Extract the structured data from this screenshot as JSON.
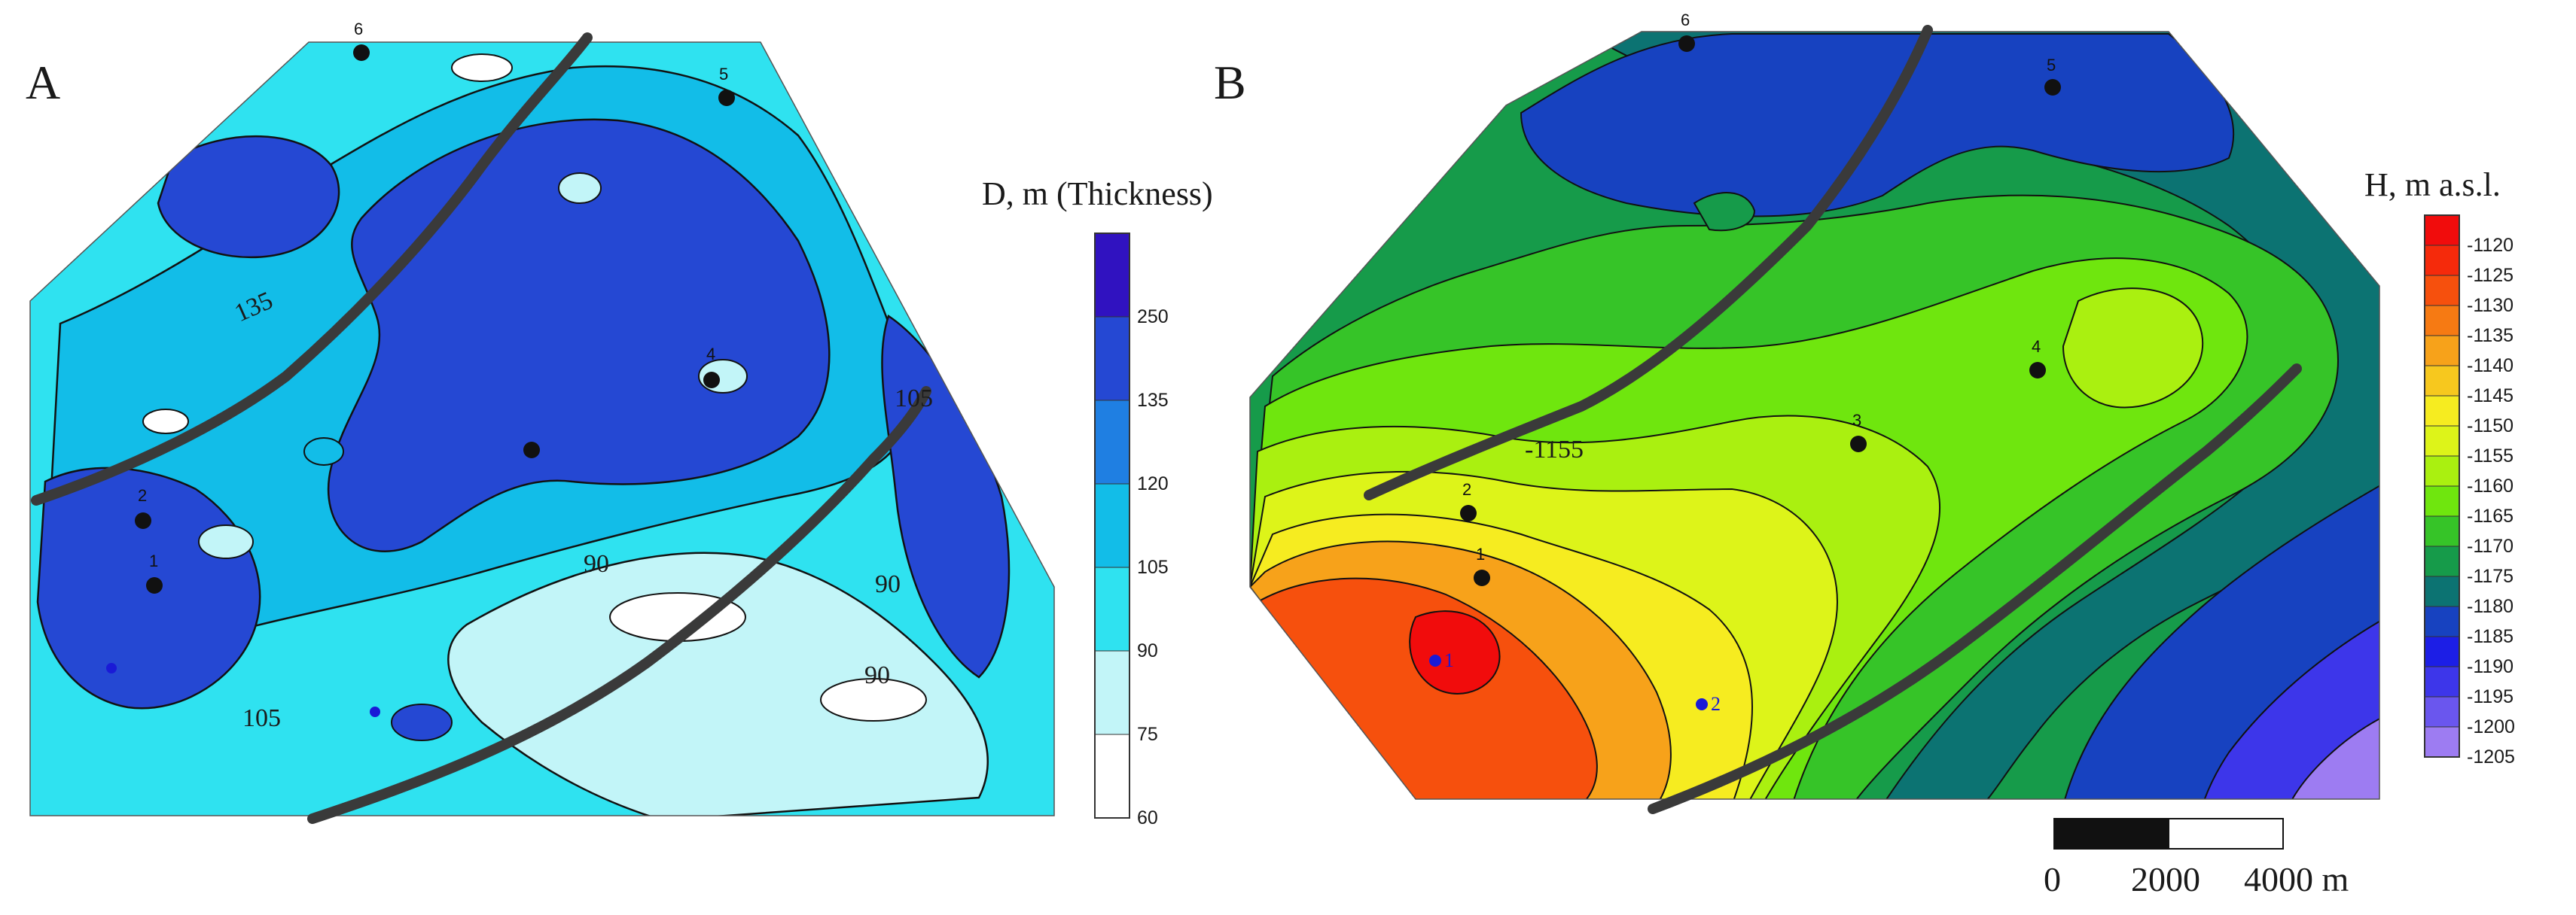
{
  "panels": {
    "a": {
      "letter": "A",
      "legend_title": "D, m (Thickness)",
      "legend": [
        {
          "label": "250",
          "color": "#3012c0"
        },
        {
          "label": "135",
          "color": "#2548d3"
        },
        {
          "label": "120",
          "color": "#1f7fe2"
        },
        {
          "label": "105",
          "color": "#12bde8"
        },
        {
          "label": "90",
          "color": "#2fe2f0"
        },
        {
          "label": "75",
          "color": "#c2f5f8"
        },
        {
          "label": "60",
          "color": "#ffffff"
        }
      ],
      "contour_labels": [
        "135",
        "105",
        "90",
        "90",
        "90",
        "105"
      ],
      "wells": [
        "6",
        "5",
        "4",
        "2",
        "1"
      ]
    },
    "b": {
      "letter": "B",
      "legend_title": "H, m a.s.l.",
      "legend": [
        {
          "label": "-1120",
          "color": "#f10c0c"
        },
        {
          "label": "-1125",
          "color": "#f52a0b"
        },
        {
          "label": "-1130",
          "color": "#f6500d"
        },
        {
          "label": "-1135",
          "color": "#f67a13"
        },
        {
          "label": "-1140",
          "color": "#f7a21a"
        },
        {
          "label": "-1145",
          "color": "#f7c81e"
        },
        {
          "label": "-1150",
          "color": "#f6ec20"
        },
        {
          "label": "-1155",
          "color": "#ddf419"
        },
        {
          "label": "-1160",
          "color": "#aaf010"
        },
        {
          "label": "-1165",
          "color": "#6fe60e"
        },
        {
          "label": "-1170",
          "color": "#36c428"
        },
        {
          "label": "-1175",
          "color": "#169b4a"
        },
        {
          "label": "-1180",
          "color": "#0c7372"
        },
        {
          "label": "-1185",
          "color": "#1742c0"
        },
        {
          "label": "-1190",
          "color": "#1c1ee6"
        },
        {
          "label": "-1195",
          "color": "#3d36ea"
        },
        {
          "label": "-1200",
          "color": "#6a56ee"
        },
        {
          "label": "-1205",
          "color": "#9d7cf2"
        }
      ],
      "contour_labels": [
        "-1155"
      ],
      "wells": [
        "6",
        "5",
        "4",
        "3",
        "2",
        "1",
        "1",
        "2"
      ]
    }
  },
  "scale_bar": {
    "labels": [
      "0",
      "2000",
      "4000 m"
    ]
  }
}
